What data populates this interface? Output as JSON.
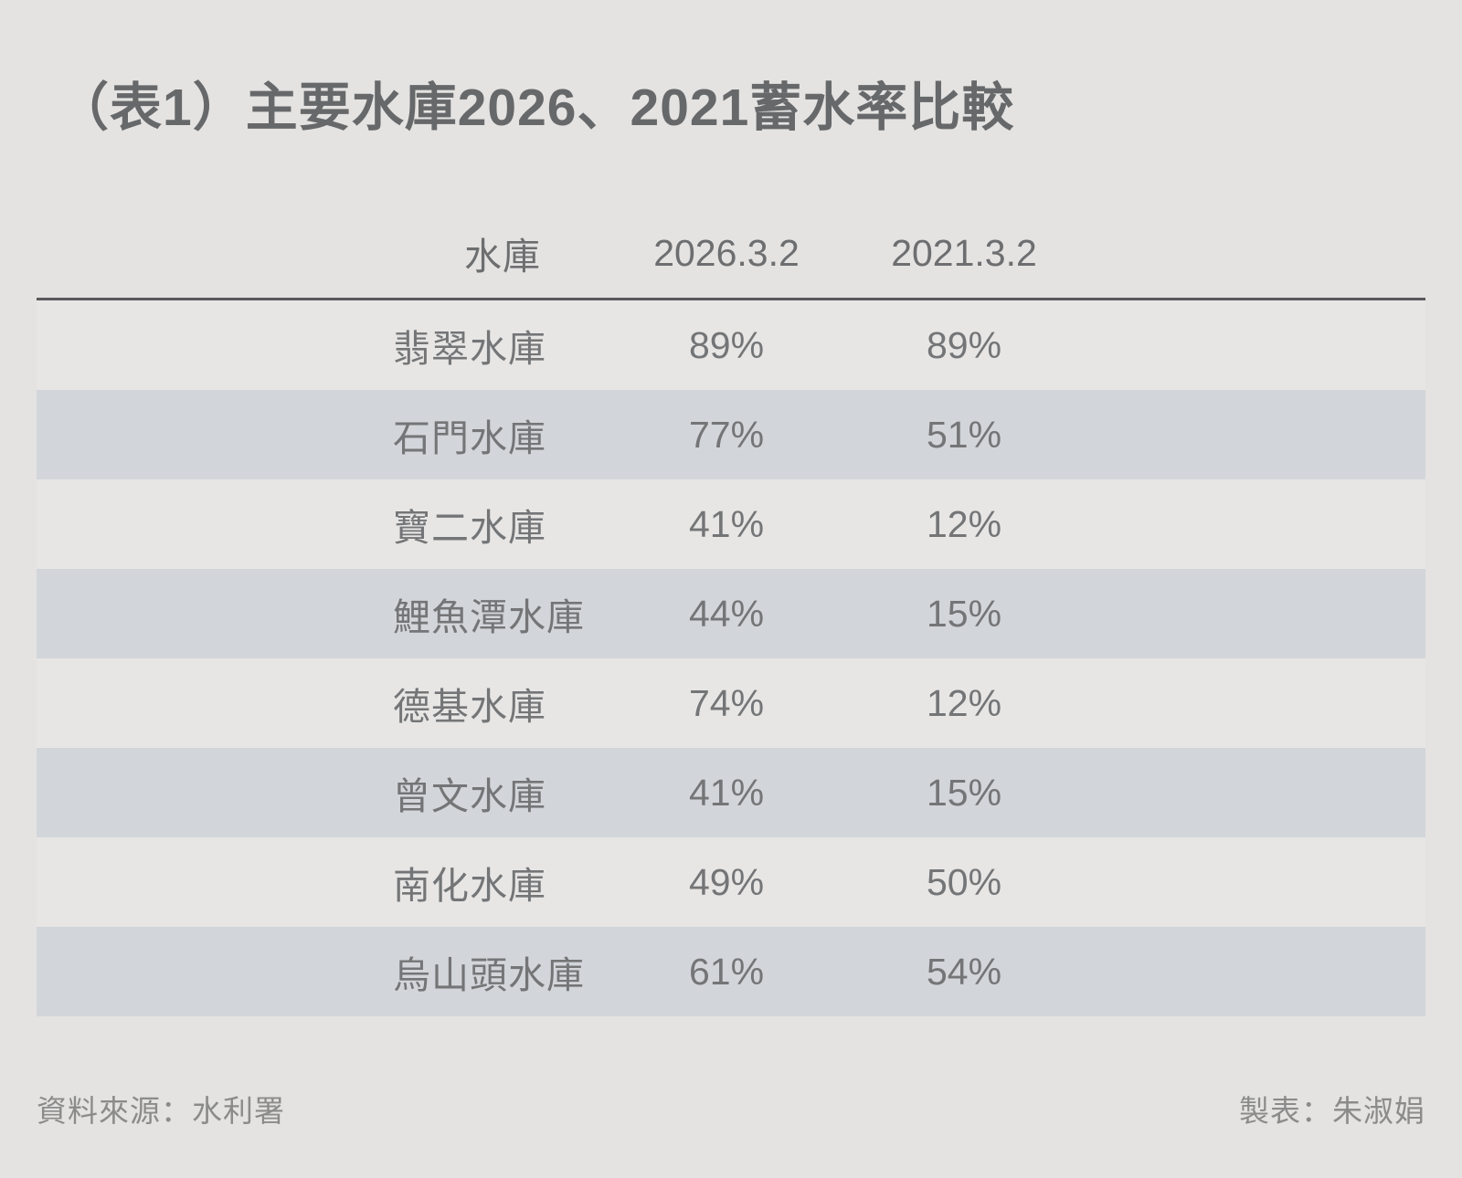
{
  "title": "（表1）主要水庫2026、2021蓄水率比較",
  "table": {
    "columns": [
      "水庫",
      "2026.3.2",
      "2021.3.2"
    ],
    "rows": [
      {
        "name": "翡翠水庫",
        "v2026": "89%",
        "v2021": "89%"
      },
      {
        "name": "石門水庫",
        "v2026": "77%",
        "v2021": "51%"
      },
      {
        "name": "寶二水庫",
        "v2026": "41%",
        "v2021": "12%"
      },
      {
        "name": "鯉魚潭水庫",
        "v2026": "44%",
        "v2021": "15%"
      },
      {
        "name": "德基水庫",
        "v2026": "74%",
        "v2021": "12%"
      },
      {
        "name": "曾文水庫",
        "v2026": "41%",
        "v2021": "15%"
      },
      {
        "name": "南化水庫",
        "v2026": "49%",
        "v2021": "50%"
      },
      {
        "name": "烏山頭水庫",
        "v2026": "61%",
        "v2021": "54%"
      }
    ]
  },
  "footer": {
    "source": "資料來源：水利署",
    "credit": "製表：朱淑娟"
  },
  "colors": {
    "page_bg": "#e4e3e2",
    "row_light": "#e7e6e5",
    "row_shaded": "#d2d5d9",
    "header_line": "#59585a",
    "cell_text": "#747577",
    "title_text": "#67686a",
    "footer_text": "#8b8b8b"
  },
  "chart_data": {
    "type": "table",
    "title": "（表1）主要水庫2026、2021蓄水率比較",
    "columns": [
      "水庫",
      "2026.3.2",
      "2021.3.2"
    ],
    "rows": [
      [
        "翡翠水庫",
        89,
        89
      ],
      [
        "石門水庫",
        77,
        51
      ],
      [
        "寶二水庫",
        41,
        12
      ],
      [
        "鯉魚潭水庫",
        44,
        15
      ],
      [
        "德基水庫",
        74,
        12
      ],
      [
        "曾文水庫",
        41,
        15
      ],
      [
        "南化水庫",
        49,
        50
      ],
      [
        "烏山頭水庫",
        61,
        54
      ]
    ],
    "units": "percent",
    "source_note": "資料來源：水利署",
    "credit_note": "製表：朱淑娟",
    "layout": {
      "shaded_row_indices": [
        1,
        3,
        5,
        7
      ],
      "header_divider": true
    }
  }
}
